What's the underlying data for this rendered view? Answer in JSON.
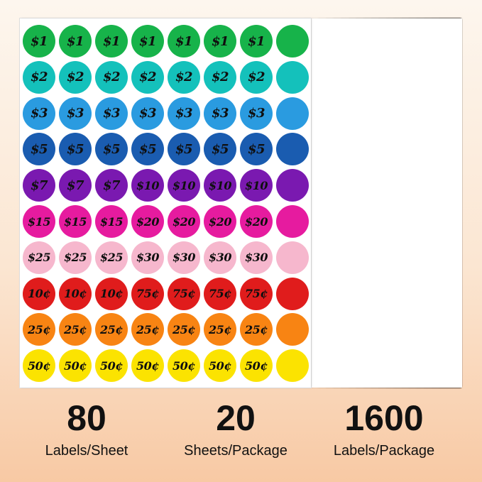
{
  "colors": [
    "#17b34a",
    "#14c1bb",
    "#2a9be0",
    "#1a5cb0",
    "#7a19b0",
    "#e61b9f",
    "#f6b7cd",
    "#e01c1c",
    "#f88413",
    "#fbe301"
  ],
  "rows": [
    {
      "color_index": 0,
      "labels": [
        "$1",
        "$1",
        "$1",
        "$1",
        "$1",
        "$1",
        "$1"
      ]
    },
    {
      "color_index": 1,
      "labels": [
        "$2",
        "$2",
        "$2",
        "$2",
        "$2",
        "$2",
        "$2"
      ]
    },
    {
      "color_index": 2,
      "labels": [
        "$3",
        "$3",
        "$3",
        "$3",
        "$3",
        "$3",
        "$3"
      ]
    },
    {
      "color_index": 3,
      "labels": [
        "$5",
        "$5",
        "$5",
        "$5",
        "$5",
        "$5",
        "$5"
      ]
    },
    {
      "color_index": 4,
      "labels": [
        "$7",
        "$7",
        "$7",
        "$10",
        "$10",
        "$10",
        "$10"
      ]
    },
    {
      "color_index": 5,
      "labels": [
        "$15",
        "$15",
        "$15",
        "$20",
        "$20",
        "$20",
        "$20"
      ]
    },
    {
      "color_index": 6,
      "labels": [
        "$25",
        "$25",
        "$25",
        "$30",
        "$30",
        "$30",
        "$30"
      ]
    },
    {
      "color_index": 7,
      "labels": [
        "10¢",
        "10¢",
        "10¢",
        "75¢",
        "75¢",
        "75¢",
        "75¢"
      ]
    },
    {
      "color_index": 8,
      "labels": [
        "25¢",
        "25¢",
        "25¢",
        "25¢",
        "25¢",
        "25¢",
        "25¢"
      ]
    },
    {
      "color_index": 9,
      "labels": [
        "50¢",
        "50¢",
        "50¢",
        "50¢",
        "50¢",
        "50¢",
        "50¢"
      ]
    }
  ],
  "stats": [
    {
      "number": "80",
      "label": "Labels/Sheet"
    },
    {
      "number": "20",
      "label": "Sheets/Package"
    },
    {
      "number": "1600",
      "label": "Labels/Package"
    }
  ]
}
